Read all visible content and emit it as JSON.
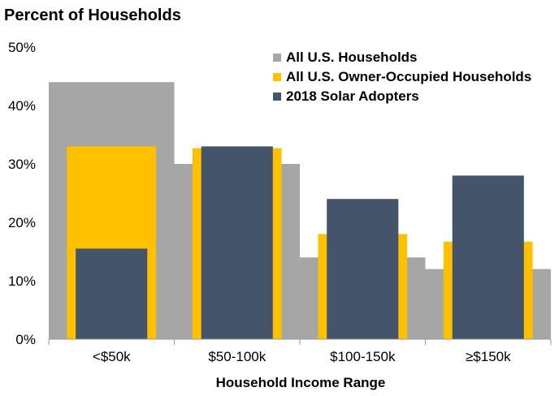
{
  "chart_data": {
    "type": "bar",
    "title": "",
    "ylabel": "Percent of Households",
    "xlabel": "Household Income Range",
    "categories": [
      "<$50k",
      "$50-100k",
      "$100-150k",
      "≥$150k"
    ],
    "ylim": [
      0,
      50
    ],
    "yticks": [
      0,
      10,
      20,
      30,
      40,
      50
    ],
    "ytick_labels": [
      "0%",
      "10%",
      "20%",
      "30%",
      "40%",
      "50%"
    ],
    "series": [
      {
        "name": "All U.S. Households",
        "values": [
          44,
          30,
          14,
          12
        ],
        "color": "#A6A6A6"
      },
      {
        "name": "All U.S. Owner-Occupied Households",
        "values": [
          33,
          32.7,
          18,
          16.7
        ],
        "color": "#FFC000"
      },
      {
        "name": "2018 Solar Adopters",
        "values": [
          15.5,
          33,
          24,
          28
        ],
        "color": "#44546A"
      }
    ],
    "legend_position": "top-right",
    "grid": false
  }
}
